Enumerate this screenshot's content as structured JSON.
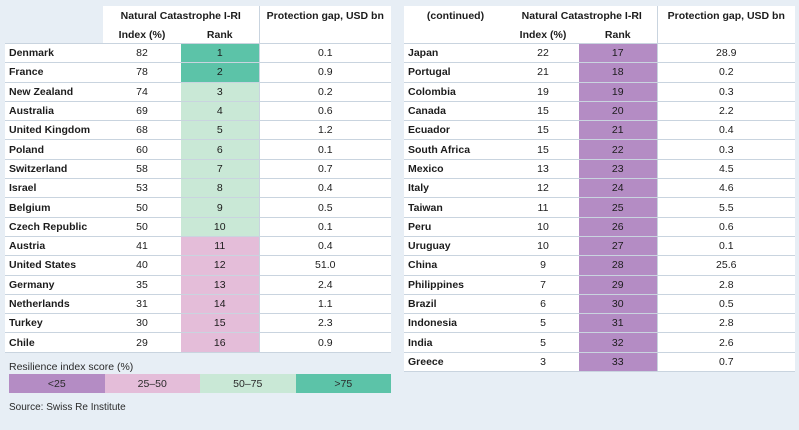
{
  "headers": {
    "left_blank": "",
    "continued": "(continued)",
    "index_group": "Natural Catastrophe I-RI",
    "index_col": "Index (%)",
    "rank_col": "Rank",
    "gap_col": "Protection gap, USD bn"
  },
  "colors": {
    "gt75": "#5cc3a8",
    "50_75": "#c9e8d6",
    "25_50": "#e4bdd9",
    "lt25": "#b48cc4",
    "background": "#e7eef5"
  },
  "left_rows": [
    {
      "country": "Denmark",
      "index": "82",
      "rank": "1",
      "gap": "0.1",
      "cat": "gt75"
    },
    {
      "country": "France",
      "index": "78",
      "rank": "2",
      "gap": "0.9",
      "cat": "gt75"
    },
    {
      "country": "New Zealand",
      "index": "74",
      "rank": "3",
      "gap": "0.2",
      "cat": "50-75"
    },
    {
      "country": "Australia",
      "index": "69",
      "rank": "4",
      "gap": "0.6",
      "cat": "50-75"
    },
    {
      "country": "United Kingdom",
      "index": "68",
      "rank": "5",
      "gap": "1.2",
      "cat": "50-75"
    },
    {
      "country": "Poland",
      "index": "60",
      "rank": "6",
      "gap": "0.1",
      "cat": "50-75"
    },
    {
      "country": "Switzerland",
      "index": "58",
      "rank": "7",
      "gap": "0.7",
      "cat": "50-75"
    },
    {
      "country": "Israel",
      "index": "53",
      "rank": "8",
      "gap": "0.4",
      "cat": "50-75"
    },
    {
      "country": "Belgium",
      "index": "50",
      "rank": "9",
      "gap": "0.5",
      "cat": "50-75"
    },
    {
      "country": "Czech Republic",
      "index": "50",
      "rank": "10",
      "gap": "0.1",
      "cat": "50-75"
    },
    {
      "country": "Austria",
      "index": "41",
      "rank": "11",
      "gap": "0.4",
      "cat": "25-50"
    },
    {
      "country": "United States",
      "index": "40",
      "rank": "12",
      "gap": "51.0",
      "cat": "25-50"
    },
    {
      "country": "Germany",
      "index": "35",
      "rank": "13",
      "gap": "2.4",
      "cat": "25-50"
    },
    {
      "country": "Netherlands",
      "index": "31",
      "rank": "14",
      "gap": "1.1",
      "cat": "25-50"
    },
    {
      "country": "Turkey",
      "index": "30",
      "rank": "15",
      "gap": "2.3",
      "cat": "25-50"
    },
    {
      "country": "Chile",
      "index": "29",
      "rank": "16",
      "gap": "0.9",
      "cat": "25-50"
    }
  ],
  "right_rows": [
    {
      "country": "Japan",
      "index": "22",
      "rank": "17",
      "gap": "28.9",
      "cat": "lt25"
    },
    {
      "country": "Portugal",
      "index": "21",
      "rank": "18",
      "gap": "0.2",
      "cat": "lt25"
    },
    {
      "country": "Colombia",
      "index": "19",
      "rank": "19",
      "gap": "0.3",
      "cat": "lt25"
    },
    {
      "country": "Canada",
      "index": "15",
      "rank": "20",
      "gap": "2.2",
      "cat": "lt25"
    },
    {
      "country": "Ecuador",
      "index": "15",
      "rank": "21",
      "gap": "0.4",
      "cat": "lt25"
    },
    {
      "country": "South Africa",
      "index": "15",
      "rank": "22",
      "gap": "0.3",
      "cat": "lt25"
    },
    {
      "country": "Mexico",
      "index": "13",
      "rank": "23",
      "gap": "4.5",
      "cat": "lt25"
    },
    {
      "country": "Italy",
      "index": "12",
      "rank": "24",
      "gap": "4.6",
      "cat": "lt25"
    },
    {
      "country": "Taiwan",
      "index": "11",
      "rank": "25",
      "gap": "5.5",
      "cat": "lt25"
    },
    {
      "country": "Peru",
      "index": "10",
      "rank": "26",
      "gap": "0.6",
      "cat": "lt25"
    },
    {
      "country": "Uruguay",
      "index": "10",
      "rank": "27",
      "gap": "0.1",
      "cat": "lt25"
    },
    {
      "country": "China",
      "index": "9",
      "rank": "28",
      "gap": "25.6",
      "cat": "lt25"
    },
    {
      "country": "Philippines",
      "index": "7",
      "rank": "29",
      "gap": "2.8",
      "cat": "lt25"
    },
    {
      "country": "Brazil",
      "index": "6",
      "rank": "30",
      "gap": "0.5",
      "cat": "lt25"
    },
    {
      "country": "Indonesia",
      "index": "5",
      "rank": "31",
      "gap": "2.8",
      "cat": "lt25"
    },
    {
      "country": "India",
      "index": "5",
      "rank": "32",
      "gap": "2.6",
      "cat": "lt25"
    },
    {
      "country": "Greece",
      "index": "3",
      "rank": "33",
      "gap": "0.7",
      "cat": "lt25"
    }
  ],
  "legend": {
    "title": "Resilience index score (%)",
    "items": [
      {
        "label": "<25",
        "cat": "lt25"
      },
      {
        "label": "25–50",
        "cat": "25-50"
      },
      {
        "label": "50–75",
        "cat": "50-75"
      },
      {
        "label": ">75",
        "cat": "gt75"
      }
    ]
  },
  "source": "Source: Swiss Re Institute"
}
